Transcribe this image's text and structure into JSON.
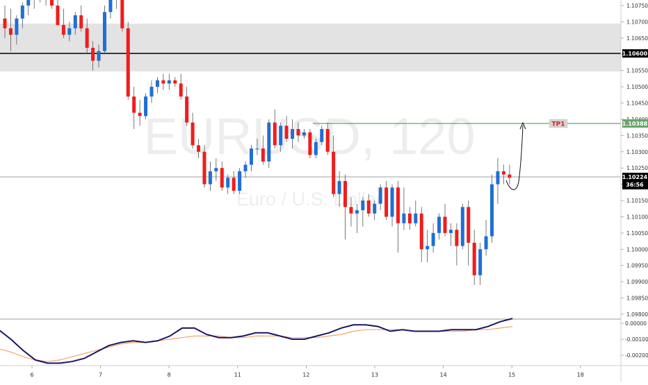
{
  "watermark": {
    "symbol": "EURUSD, 120",
    "description": "Euro / U.S. Dollar"
  },
  "colors": {
    "up": "#1f6fd6",
    "down": "#f11c1c",
    "zone": "#dcdcdc",
    "tp_line": "#6aa36a",
    "tp_label_bg": "#d4d4d4",
    "tp_label_text": "#e4171b",
    "osc_main": "#1b1464",
    "osc_signal": "#f5a36b",
    "price_line": "#808080",
    "axis_text": "#333333"
  },
  "price_axis": {
    "ticks": [
      "1.10750",
      "1.10700",
      "1.10650",
      "1.10600",
      "1.10550",
      "1.10500",
      "1.10450",
      "1.10400",
      "1.10350",
      "1.10300",
      "1.10250",
      "1.10200",
      "1.10150",
      "1.10100",
      "1.10050",
      "1.10000",
      "1.09950",
      "1.09900",
      "1.09850",
      "1.09800"
    ],
    "current_price": "1.10224",
    "countdown": "36:56",
    "level_label": "1.10600",
    "tp_price": "1.10388"
  },
  "time_axis": {
    "labels": [
      "6",
      "7",
      "8",
      "11",
      "12",
      "13",
      "14",
      "15",
      "18"
    ]
  },
  "oscillator_axis": {
    "ticks": [
      "0.00000",
      "-0.00100",
      "-0.00200"
    ]
  },
  "tp_label": "TP1",
  "chart_data": {
    "type": "candlestick",
    "symbol": "EURUSD",
    "timeframe": "120",
    "ylim": [
      1.0978,
      1.1078
    ],
    "zone": [
      1.1055,
      1.10695
    ],
    "horizontal_levels": [
      1.106,
      1.10388,
      1.10224
    ],
    "projection": {
      "from": 1.10224,
      "low": 1.1017,
      "to": 1.10388
    },
    "candles": [
      [
        1.1071,
        1.1075,
        1.1065,
        1.1068
      ],
      [
        1.1068,
        1.1074,
        1.1061,
        1.1066
      ],
      [
        1.1066,
        1.1072,
        1.1063,
        1.1071
      ],
      [
        1.1071,
        1.1076,
        1.1068,
        1.1075
      ],
      [
        1.1075,
        1.1079,
        1.1072,
        1.1077
      ],
      [
        1.1077,
        1.108,
        1.1074,
        1.1079
      ],
      [
        1.1079,
        1.1081,
        1.1076,
        1.1078
      ],
      [
        1.1078,
        1.108,
        1.1075,
        1.1078
      ],
      [
        1.1078,
        1.1081,
        1.1074,
        1.1075
      ],
      [
        1.1075,
        1.1078,
        1.1069,
        1.1069
      ],
      [
        1.1069,
        1.1074,
        1.1065,
        1.1066
      ],
      [
        1.1066,
        1.107,
        1.1064,
        1.1068
      ],
      [
        1.1068,
        1.1073,
        1.1066,
        1.1072
      ],
      [
        1.1072,
        1.1075,
        1.1067,
        1.1068
      ],
      [
        1.1068,
        1.1071,
        1.106,
        1.1062
      ],
      [
        1.1062,
        1.1064,
        1.1055,
        1.1058
      ],
      [
        1.1058,
        1.1063,
        1.1056,
        1.1061
      ],
      [
        1.1061,
        1.1075,
        1.106,
        1.1073
      ],
      [
        1.1073,
        1.1079,
        1.1071,
        1.1077
      ],
      [
        1.1077,
        1.1081,
        1.1074,
        1.108
      ],
      [
        1.108,
        1.1081,
        1.1067,
        1.1068
      ],
      [
        1.1068,
        1.107,
        1.1046,
        1.1047
      ],
      [
        1.1047,
        1.105,
        1.1037,
        1.1042
      ],
      [
        1.1042,
        1.1046,
        1.1038,
        1.1041
      ],
      [
        1.1041,
        1.1048,
        1.104,
        1.1047
      ],
      [
        1.1047,
        1.1052,
        1.1045,
        1.105
      ],
      [
        1.105,
        1.1053,
        1.1048,
        1.1052
      ],
      [
        1.1052,
        1.1054,
        1.1049,
        1.1051
      ],
      [
        1.1051,
        1.1054,
        1.1049,
        1.1052
      ],
      [
        1.1052,
        1.1053,
        1.105,
        1.1051
      ],
      [
        1.1051,
        1.1054,
        1.1046,
        1.1047
      ],
      [
        1.1047,
        1.105,
        1.1038,
        1.1039
      ],
      [
        1.1039,
        1.1042,
        1.1031,
        1.1032
      ],
      [
        1.1032,
        1.1034,
        1.1028,
        1.103
      ],
      [
        1.103,
        1.1032,
        1.1019,
        1.102
      ],
      [
        1.102,
        1.1027,
        1.1018,
        1.1024
      ],
      [
        1.1024,
        1.1028,
        1.1021,
        1.1025
      ],
      [
        1.1025,
        1.1027,
        1.1018,
        1.1019
      ],
      [
        1.1019,
        1.1023,
        1.1017,
        1.1022
      ],
      [
        1.1022,
        1.1024,
        1.1017,
        1.1018
      ],
      [
        1.1018,
        1.1025,
        1.1017,
        1.1024
      ],
      [
        1.1024,
        1.1027,
        1.1022,
        1.1026
      ],
      [
        1.1026,
        1.1032,
        1.1024,
        1.1031
      ],
      [
        1.1031,
        1.1034,
        1.1029,
        1.1031
      ],
      [
        1.1031,
        1.1035,
        1.1026,
        1.1027
      ],
      [
        1.1027,
        1.104,
        1.1025,
        1.1039
      ],
      [
        1.1039,
        1.1043,
        1.1031,
        1.1032
      ],
      [
        1.1032,
        1.1039,
        1.103,
        1.1038
      ],
      [
        1.1038,
        1.1041,
        1.1033,
        1.1034
      ],
      [
        1.1034,
        1.104,
        1.1031,
        1.1037
      ],
      [
        1.1037,
        1.1039,
        1.1033,
        1.1035
      ],
      [
        1.1035,
        1.1037,
        1.1034,
        1.1036
      ],
      [
        1.1036,
        1.1037,
        1.1028,
        1.1029
      ],
      [
        1.1029,
        1.1034,
        1.1028,
        1.1033
      ],
      [
        1.1033,
        1.1038,
        1.1032,
        1.1037
      ],
      [
        1.1037,
        1.1039,
        1.1029,
        1.103
      ],
      [
        1.103,
        1.1035,
        1.1016,
        1.1017
      ],
      [
        1.1017,
        1.1024,
        1.1013,
        1.1021
      ],
      [
        1.1021,
        1.1023,
        1.1003,
        1.1013
      ],
      [
        1.1013,
        1.1016,
        1.1007,
        1.1011
      ],
      [
        1.1011,
        1.1014,
        1.1005,
        1.1012
      ],
      [
        1.1012,
        1.1016,
        1.1007,
        1.1015
      ],
      [
        1.1015,
        1.1017,
        1.101,
        1.1011
      ],
      [
        1.1011,
        1.1015,
        1.1009,
        1.1014
      ],
      [
        1.1014,
        1.102,
        1.1012,
        1.1019
      ],
      [
        1.1019,
        1.1021,
        1.1009,
        1.101
      ],
      [
        1.101,
        1.102,
        1.1007,
        1.1019
      ],
      [
        1.1019,
        1.1021,
        1.0999,
        1.1008
      ],
      [
        1.1008,
        1.1019,
        1.1006,
        1.1011
      ],
      [
        1.1011,
        1.1013,
        1.1006,
        1.1008
      ],
      [
        1.1008,
        1.1015,
        1.1007,
        1.1011
      ],
      [
        1.1011,
        1.1013,
        1.0996,
        1.1
      ],
      [
        1.1,
        1.1006,
        1.0996,
        1.1001
      ],
      [
        1.1001,
        1.1008,
        1.0999,
        1.1005
      ],
      [
        1.1005,
        1.1011,
        1.1003,
        1.101
      ],
      [
        1.101,
        1.1014,
        1.1004,
        1.1005
      ],
      [
        1.1005,
        1.1008,
        1.1001,
        1.1006
      ],
      [
        1.1006,
        1.1008,
        1.0995,
        1.1001
      ],
      [
        1.1001,
        1.1014,
        1.1,
        1.1013
      ],
      [
        1.1013,
        1.1015,
        1.0995,
        1.1002
      ],
      [
        1.1002,
        1.1006,
        1.0989,
        1.0992
      ],
      [
        1.0992,
        1.1002,
        1.0989,
        1.1
      ],
      [
        1.1,
        1.1009,
        1.0998,
        1.1004
      ],
      [
        1.1004,
        1.1023,
        1.1002,
        1.102
      ],
      [
        1.102,
        1.1028,
        1.1014,
        1.1024
      ],
      [
        1.1024,
        1.1026,
        1.102,
        1.1023
      ],
      [
        1.1023,
        1.1026,
        1.102,
        1.1022
      ]
    ],
    "oscillator": {
      "ylim": [
        -0.0027,
        0.0001
      ],
      "main": [
        -0.0004,
        -0.001,
        -0.0017,
        -0.0023,
        -0.0025,
        -0.0025,
        -0.0024,
        -0.0022,
        -0.0018,
        -0.0014,
        -0.0012,
        -0.0011,
        -0.0012,
        -0.0011,
        -0.0008,
        -0.0003,
        -0.0003,
        -0.0007,
        -0.0009,
        -0.0009,
        -0.0008,
        -0.0006,
        -0.0006,
        -0.0008,
        -0.001,
        -0.001,
        -0.0008,
        -0.0006,
        -0.0003,
        -0.0001,
        -0.0001,
        -0.0002,
        -0.0005,
        -0.0004,
        -0.0005,
        -0.0005,
        -0.0005,
        -0.0004,
        -0.0004,
        -0.0004,
        -0.0002,
        0.0001,
        0.0003
      ],
      "signal": [
        -0.0016,
        -0.0018,
        -0.0021,
        -0.0023,
        -0.0024,
        -0.0023,
        -0.0021,
        -0.0019,
        -0.0017,
        -0.0015,
        -0.0013,
        -0.0012,
        -0.0012,
        -0.0011,
        -0.001,
        -0.0009,
        -0.0008,
        -0.0008,
        -0.0008,
        -0.0009,
        -0.0009,
        -0.0008,
        -0.0008,
        -0.0008,
        -0.0009,
        -0.0009,
        -0.0009,
        -0.0008,
        -0.0007,
        -0.0005,
        -0.0004,
        -0.0004,
        -0.0004,
        -0.0004,
        -0.0005,
        -0.0005,
        -0.0005,
        -0.0005,
        -0.0005,
        -0.0004,
        -0.0004,
        -0.0003,
        -0.0002
      ]
    }
  }
}
